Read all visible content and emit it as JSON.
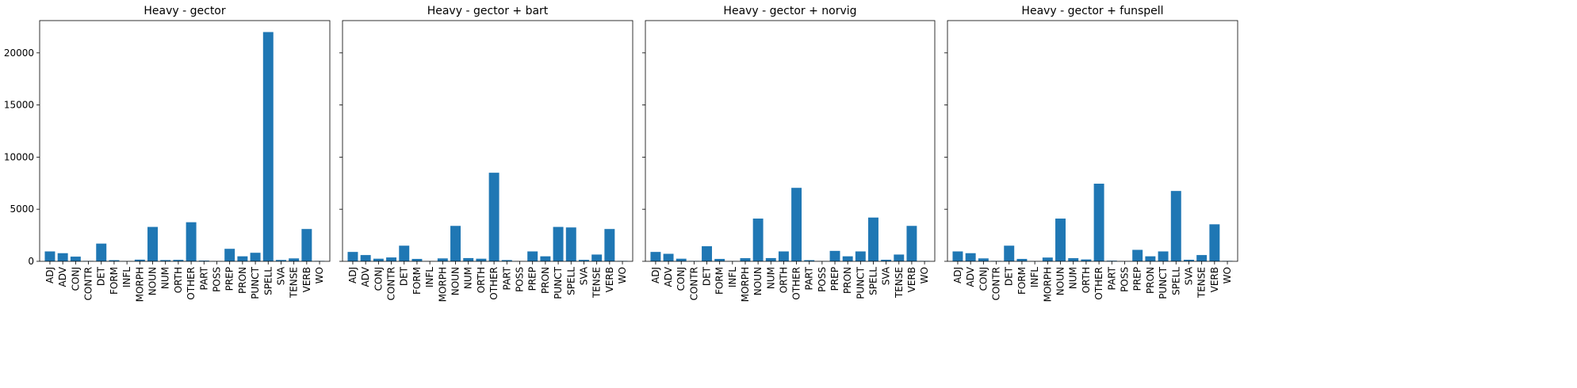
{
  "bar_color": "#1f77b4",
  "chart_data": [
    {
      "type": "bar",
      "title": "Heavy - gector",
      "categories": [
        "ADJ",
        "ADV",
        "CONJ",
        "CONTR",
        "DET",
        "FORM",
        "INFL",
        "MORPH",
        "NOUN",
        "NUM",
        "ORTH",
        "OTHER",
        "PART",
        "POSS",
        "PREP",
        "PRON",
        "PUNCT",
        "SPELL",
        "SVA",
        "TENSE",
        "VERB",
        "WO"
      ],
      "values": [
        950,
        780,
        450,
        40,
        1700,
        110,
        15,
        160,
        3300,
        120,
        140,
        3750,
        70,
        20,
        1200,
        480,
        820,
        22000,
        130,
        280,
        3100,
        40
      ],
      "xlabel": "",
      "ylabel": "",
      "ylim": [
        0,
        23100
      ],
      "yticks": [
        0,
        5000,
        10000,
        15000,
        20000
      ],
      "sharey": true
    },
    {
      "type": "bar",
      "title": "Heavy - gector + bart",
      "categories": [
        "ADJ",
        "ADV",
        "CONJ",
        "CONTR",
        "DET",
        "FORM",
        "INFL",
        "MORPH",
        "NOUN",
        "NUM",
        "ORTH",
        "OTHER",
        "PART",
        "POSS",
        "PREP",
        "PRON",
        "PUNCT",
        "SPELL",
        "SVA",
        "TENSE",
        "VERB",
        "WO"
      ],
      "values": [
        900,
        600,
        250,
        370,
        1500,
        230,
        20,
        280,
        3400,
        310,
        250,
        8500,
        120,
        20,
        950,
        480,
        3300,
        3250,
        140,
        650,
        3100,
        40
      ]
    },
    {
      "type": "bar",
      "title": "Heavy - gector + norvig",
      "categories": [
        "ADJ",
        "ADV",
        "CONJ",
        "CONTR",
        "DET",
        "FORM",
        "INFL",
        "MORPH",
        "NOUN",
        "NUM",
        "ORTH",
        "OTHER",
        "PART",
        "POSS",
        "PREP",
        "PRON",
        "PUNCT",
        "SPELL",
        "SVA",
        "TENSE",
        "VERB",
        "WO"
      ],
      "values": [
        900,
        720,
        250,
        40,
        1450,
        230,
        20,
        300,
        4100,
        310,
        950,
        7050,
        110,
        20,
        1000,
        480,
        950,
        4200,
        150,
        650,
        3400,
        40
      ]
    },
    {
      "type": "bar",
      "title": "Heavy - gector + funspell",
      "categories": [
        "ADJ",
        "ADV",
        "CONJ",
        "CONTR",
        "DET",
        "FORM",
        "INFL",
        "MORPH",
        "NOUN",
        "NUM",
        "ORTH",
        "OTHER",
        "PART",
        "POSS",
        "PREP",
        "PRON",
        "PUNCT",
        "SPELL",
        "SVA",
        "TENSE",
        "VERB",
        "WO"
      ],
      "values": [
        950,
        780,
        280,
        40,
        1500,
        230,
        20,
        360,
        4100,
        300,
        180,
        7450,
        60,
        20,
        1100,
        480,
        950,
        6750,
        150,
        600,
        3550,
        40
      ]
    }
  ]
}
